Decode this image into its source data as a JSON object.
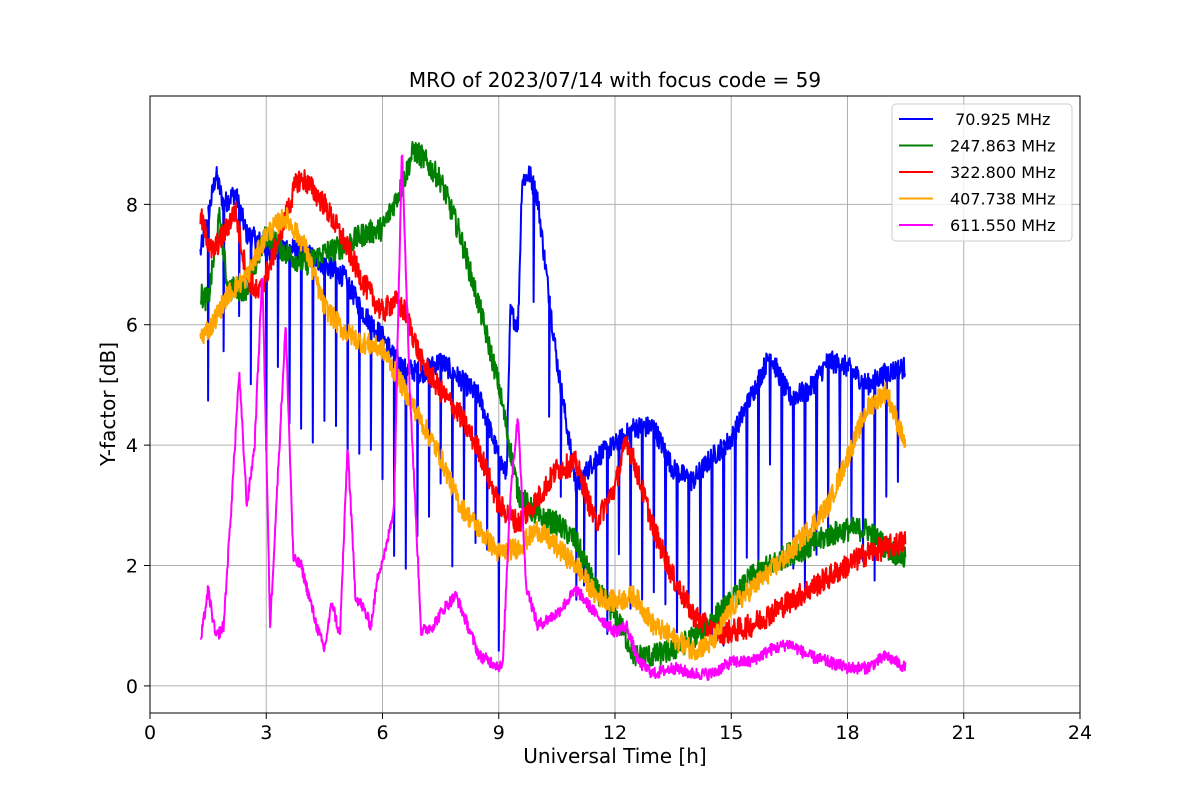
{
  "chart_data": {
    "type": "line",
    "title": "MRO of 2023/07/14 with focus code = 59",
    "xlabel": "Universal Time [h]",
    "ylabel": "Y-factor [dB]",
    "xlim": [
      0,
      24
    ],
    "ylim": [
      -0.45,
      9.8
    ],
    "xticks": [
      0,
      3,
      6,
      9,
      12,
      15,
      18,
      21,
      24
    ],
    "yticks": [
      0,
      2,
      4,
      6,
      8
    ],
    "grid": true,
    "legend_position": "top-right",
    "series": [
      {
        "name": " 70.925 MHz",
        "color": "#0000ff",
        "x": [
          1.3,
          1.5,
          1.7,
          1.9,
          2.2,
          2.5,
          2.8,
          3.1,
          3.5,
          4.0,
          4.5,
          5.0,
          5.5,
          6.0,
          6.5,
          7.0,
          7.5,
          8.0,
          8.5,
          9.0,
          9.2,
          9.3,
          9.5,
          9.6,
          9.8,
          10.0,
          10.2,
          10.5,
          11.0,
          11.5,
          12.0,
          12.5,
          13.0,
          13.5,
          14.0,
          14.5,
          15.0,
          15.5,
          16.0,
          16.5,
          17.0,
          17.5,
          18.0,
          18.5,
          19.0,
          19.5
        ],
        "values": [
          7.2,
          7.8,
          8.5,
          8.0,
          8.2,
          7.5,
          7.4,
          7.2,
          7.3,
          7.2,
          7.0,
          6.8,
          6.2,
          5.8,
          5.3,
          5.2,
          5.4,
          5.1,
          4.8,
          3.8,
          3.5,
          6.2,
          6.0,
          8.4,
          8.5,
          8.1,
          7.0,
          5.4,
          3.3,
          3.8,
          4.0,
          4.3,
          4.3,
          3.6,
          3.4,
          3.8,
          4.1,
          4.8,
          5.5,
          4.8,
          4.9,
          5.4,
          5.3,
          5.0,
          5.2,
          5.3
        ],
        "dips": [
          1.5,
          1.9,
          2.3,
          2.6,
          3.0,
          3.3,
          3.6,
          3.9,
          4.2,
          4.5,
          4.8,
          5.1,
          5.4,
          5.7,
          6.0,
          6.3,
          6.6,
          6.9,
          7.2,
          7.5,
          7.8,
          8.1,
          8.4,
          8.7,
          9.0,
          9.9,
          10.3,
          10.6,
          11.0,
          11.2,
          11.5,
          11.8,
          12.1,
          12.4,
          12.7,
          13.0,
          13.3,
          13.6,
          13.9,
          14.2,
          14.5,
          14.8,
          15.1,
          15.4,
          15.7,
          16.0,
          16.3,
          16.6,
          16.9,
          17.2,
          17.5,
          17.8,
          18.1,
          18.4,
          18.7,
          19.0,
          19.3
        ]
      },
      {
        "name": "247.863 MHz",
        "color": "#008000",
        "x": [
          1.3,
          1.5,
          1.8,
          2.0,
          2.5,
          3.0,
          3.5,
          4.0,
          4.5,
          5.0,
          5.5,
          6.0,
          6.5,
          6.8,
          7.0,
          7.5,
          8.0,
          8.5,
          9.0,
          9.5,
          10.0,
          10.5,
          11.0,
          11.5,
          12.0,
          12.5,
          13.0,
          13.5,
          14.0,
          14.5,
          15.0,
          15.5,
          16.0,
          16.5,
          17.0,
          17.5,
          18.0,
          18.5,
          19.0,
          19.5
        ],
        "values": [
          6.5,
          6.4,
          7.8,
          6.6,
          6.6,
          7.5,
          7.2,
          7.0,
          7.2,
          7.3,
          7.5,
          7.6,
          8.3,
          8.9,
          8.8,
          8.4,
          7.5,
          6.3,
          5.0,
          3.2,
          2.8,
          2.7,
          2.4,
          1.6,
          1.2,
          0.5,
          0.5,
          0.6,
          0.8,
          1.1,
          1.4,
          1.8,
          2.0,
          2.2,
          2.3,
          2.5,
          2.6,
          2.6,
          2.3,
          2.1
        ],
        "dips": []
      },
      {
        "name": "322.800 MHz",
        "color": "#ff0000",
        "x": [
          1.3,
          1.6,
          1.9,
          2.2,
          2.5,
          2.8,
          3.1,
          3.5,
          3.8,
          4.0,
          4.5,
          5.0,
          5.5,
          6.0,
          6.3,
          6.6,
          7.0,
          7.5,
          8.0,
          8.5,
          9.0,
          9.5,
          10.0,
          10.5,
          11.0,
          11.5,
          12.0,
          12.3,
          12.6,
          13.0,
          13.5,
          14.0,
          14.5,
          15.0,
          15.5,
          16.0,
          16.5,
          17.0,
          17.5,
          18.0,
          18.5,
          19.0,
          19.5
        ],
        "values": [
          7.8,
          7.2,
          7.5,
          7.9,
          6.8,
          6.5,
          7.0,
          7.8,
          8.4,
          8.4,
          8.0,
          7.4,
          6.7,
          6.2,
          6.4,
          6.2,
          5.4,
          4.9,
          4.5,
          3.9,
          3.0,
          2.7,
          3.1,
          3.6,
          3.7,
          2.7,
          3.3,
          4.1,
          3.5,
          2.6,
          1.8,
          1.2,
          0.9,
          0.9,
          1.0,
          1.2,
          1.4,
          1.6,
          1.8,
          2.0,
          2.2,
          2.3,
          2.4
        ],
        "dips": []
      },
      {
        "name": "407.738 MHz",
        "color": "#ffa500",
        "x": [
          1.3,
          1.6,
          2.0,
          2.5,
          3.0,
          3.5,
          4.0,
          4.5,
          5.0,
          5.5,
          6.0,
          6.5,
          7.0,
          7.5,
          8.0,
          8.5,
          9.0,
          9.5,
          10.0,
          10.5,
          11.0,
          11.5,
          12.0,
          12.5,
          13.0,
          13.5,
          14.0,
          14.5,
          15.0,
          15.5,
          16.0,
          16.5,
          17.0,
          17.5,
          18.0,
          18.5,
          19.0,
          19.5
        ],
        "values": [
          5.8,
          6.0,
          6.5,
          6.8,
          7.5,
          7.8,
          7.3,
          6.3,
          5.9,
          5.7,
          5.6,
          5.0,
          4.4,
          3.8,
          3.0,
          2.6,
          2.2,
          2.3,
          2.6,
          2.3,
          2.0,
          1.5,
          1.4,
          1.5,
          1.0,
          0.8,
          0.6,
          0.7,
          1.3,
          1.6,
          1.9,
          2.2,
          2.6,
          3.0,
          3.8,
          4.6,
          4.9,
          4.0
        ],
        "dips": []
      },
      {
        "name": "611.550 MHz",
        "color": "#ff00ff",
        "x": [
          1.3,
          1.5,
          1.7,
          1.9,
          2.1,
          2.3,
          2.5,
          2.7,
          2.9,
          3.1,
          3.3,
          3.5,
          3.7,
          3.9,
          4.1,
          4.3,
          4.5,
          4.7,
          4.9,
          5.1,
          5.3,
          5.5,
          5.7,
          5.9,
          6.1,
          6.3,
          6.5,
          6.7,
          7.0,
          7.3,
          7.6,
          7.9,
          8.2,
          8.5,
          8.8,
          9.1,
          9.3,
          9.5,
          9.7,
          10.0,
          10.5,
          11.0,
          11.5,
          12.0,
          12.3,
          12.6,
          13.0,
          13.5,
          14.0,
          14.5,
          15.0,
          15.5,
          16.0,
          16.5,
          17.0,
          17.5,
          18.0,
          18.5,
          19.0,
          19.5
        ],
        "values": [
          0.7,
          1.6,
          0.8,
          1.0,
          3.0,
          5.2,
          3.0,
          4.0,
          6.9,
          1.0,
          3.5,
          6.0,
          2.1,
          2.0,
          1.5,
          1.0,
          0.6,
          1.4,
          0.8,
          4.0,
          1.5,
          1.3,
          1.0,
          1.9,
          2.3,
          3.0,
          9.0,
          5.0,
          0.9,
          1.0,
          1.3,
          1.5,
          1.0,
          0.5,
          0.4,
          0.3,
          3.2,
          4.5,
          1.7,
          1.0,
          1.2,
          1.6,
          1.2,
          0.9,
          1.0,
          0.4,
          0.2,
          0.3,
          0.2,
          0.2,
          0.4,
          0.4,
          0.6,
          0.7,
          0.5,
          0.4,
          0.3,
          0.3,
          0.5,
          0.3
        ],
        "dips": []
      }
    ]
  }
}
